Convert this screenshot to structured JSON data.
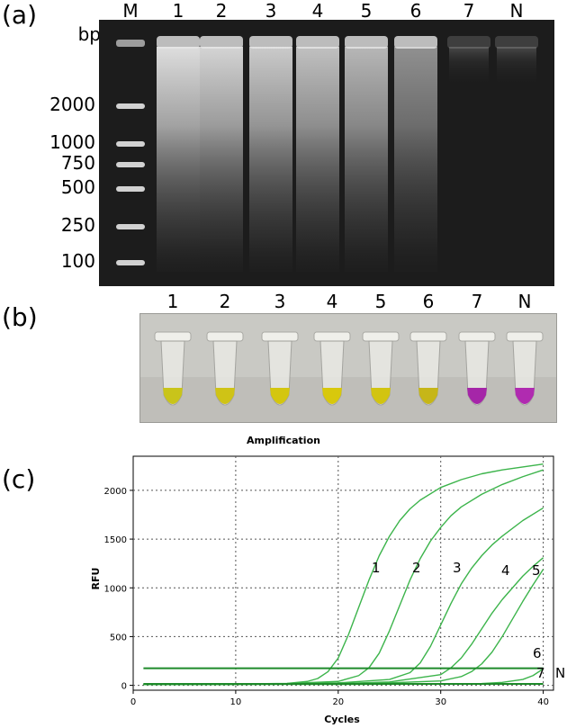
{
  "panel_labels": {
    "a": "(a)",
    "b": "(b)",
    "c": "(c)"
  },
  "gel": {
    "bp_unit": "bp",
    "lanes": [
      "M",
      "1",
      "2",
      "3",
      "4",
      "5",
      "6",
      "7",
      "N"
    ],
    "ladder_labels": [
      "2000",
      "1000",
      "750",
      "500",
      "250",
      "100"
    ]
  },
  "tubes": {
    "labels": [
      "1",
      "2",
      "3",
      "4",
      "5",
      "6",
      "7",
      "N"
    ],
    "colors": [
      "#c9c41a",
      "#cfc316",
      "#d4c60f",
      "#d8c80c",
      "#d2c410",
      "#c6b618",
      "#a526a8",
      "#b02bb0"
    ]
  },
  "chart_data": {
    "type": "line",
    "title": "Amplification",
    "xlabel": "Cycles",
    "ylabel": "RFU",
    "xlim": [
      0,
      41
    ],
    "ylim": [
      -50,
      2350
    ],
    "xticks": [
      0,
      10,
      20,
      30,
      40
    ],
    "yticks": [
      0,
      500,
      1000,
      1500,
      2000
    ],
    "grid": true,
    "series": [
      {
        "name": "1",
        "x": [
          1,
          5,
          10,
          15,
          17,
          18,
          19,
          20,
          21,
          22,
          23,
          24,
          25,
          26,
          27,
          28,
          30,
          32,
          34,
          36,
          38,
          40
        ],
        "y": [
          10,
          12,
          14,
          20,
          40,
          70,
          140,
          280,
          520,
          800,
          1080,
          1330,
          1530,
          1690,
          1810,
          1900,
          2030,
          2110,
          2170,
          2210,
          2240,
          2270
        ]
      },
      {
        "name": "2",
        "x": [
          1,
          5,
          10,
          15,
          20,
          22,
          23,
          24,
          25,
          26,
          27,
          28,
          29,
          30,
          31,
          32,
          34,
          36,
          38,
          40
        ],
        "y": [
          10,
          12,
          14,
          18,
          40,
          100,
          180,
          330,
          560,
          820,
          1080,
          1300,
          1480,
          1620,
          1740,
          1830,
          1960,
          2060,
          2140,
          2210
        ]
      },
      {
        "name": "3",
        "x": [
          1,
          5,
          10,
          15,
          20,
          25,
          27,
          28,
          29,
          30,
          31,
          32,
          33,
          34,
          35,
          36,
          38,
          40
        ],
        "y": [
          10,
          11,
          13,
          16,
          25,
          60,
          130,
          230,
          400,
          620,
          840,
          1040,
          1200,
          1330,
          1440,
          1530,
          1690,
          1820
        ]
      },
      {
        "name": "4",
        "x": [
          1,
          5,
          10,
          15,
          20,
          25,
          30,
          31,
          32,
          33,
          34,
          35,
          36,
          37,
          38,
          39,
          40
        ],
        "y": [
          8,
          9,
          11,
          13,
          18,
          35,
          110,
          180,
          280,
          420,
          580,
          740,
          880,
          1000,
          1120,
          1220,
          1310
        ]
      },
      {
        "name": "5",
        "x": [
          1,
          5,
          10,
          15,
          20,
          25,
          30,
          32,
          33,
          34,
          35,
          36,
          37,
          38,
          39,
          40
        ],
        "y": [
          8,
          9,
          10,
          12,
          15,
          25,
          45,
          90,
          140,
          220,
          340,
          500,
          680,
          860,
          1030,
          1190
        ]
      },
      {
        "name": "6",
        "x": [
          1,
          5,
          10,
          15,
          20,
          25,
          30,
          35,
          40
        ],
        "y": [
          175,
          175,
          175,
          175,
          175,
          175,
          175,
          175,
          175
        ]
      },
      {
        "name": "7",
        "x": [
          1,
          5,
          10,
          15,
          20,
          25,
          30,
          34,
          36,
          38,
          39,
          40
        ],
        "y": [
          8,
          8,
          9,
          9,
          10,
          11,
          13,
          18,
          30,
          60,
          100,
          170
        ]
      },
      {
        "name": "N",
        "x": [
          1,
          5,
          10,
          15,
          20,
          25,
          30,
          35,
          40
        ],
        "y": [
          15,
          15,
          15,
          15,
          15,
          15,
          15,
          15,
          15
        ]
      }
    ],
    "curve_labels": [
      "1",
      "2",
      "3",
      "4",
      "5",
      "6",
      "7",
      "N"
    ]
  }
}
